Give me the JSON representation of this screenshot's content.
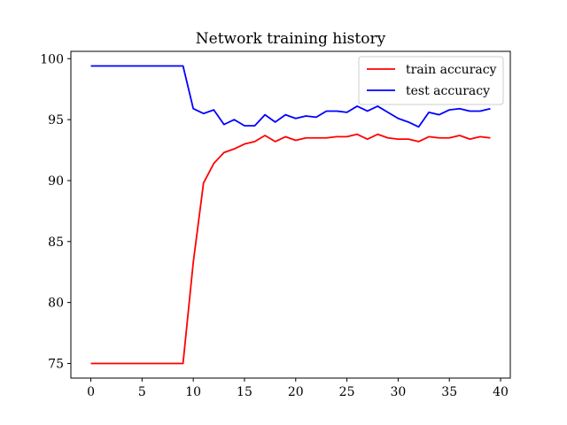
{
  "chart_data": {
    "type": "line",
    "title": "Network training history",
    "xlabel": "",
    "ylabel": "",
    "xlim": [
      -1.95,
      40.95
    ],
    "ylim": [
      73.8,
      100.6
    ],
    "x_ticks": [
      0,
      5,
      10,
      15,
      20,
      25,
      30,
      35,
      40
    ],
    "y_ticks": [
      75,
      80,
      85,
      90,
      95,
      100
    ],
    "grid": false,
    "legend_position": "top-right",
    "x": [
      0,
      1,
      2,
      3,
      4,
      5,
      6,
      7,
      8,
      9,
      10,
      11,
      12,
      13,
      14,
      15,
      16,
      17,
      18,
      19,
      20,
      21,
      22,
      23,
      24,
      25,
      26,
      27,
      28,
      29,
      30,
      31,
      32,
      33,
      34,
      35,
      36,
      37,
      38,
      39
    ],
    "series": [
      {
        "name": "train accuracy",
        "color": "#ff0000",
        "values": [
          75,
          75,
          75,
          75,
          75,
          75,
          75,
          75,
          75,
          75,
          83.3,
          89.8,
          91.4,
          92.3,
          92.6,
          93.0,
          93.2,
          93.7,
          93.2,
          93.6,
          93.3,
          93.5,
          93.5,
          93.5,
          93.6,
          93.6,
          93.8,
          93.4,
          93.8,
          93.5,
          93.4,
          93.4,
          93.2,
          93.6,
          93.5,
          93.5,
          93.7,
          93.4,
          93.6,
          93.5
        ]
      },
      {
        "name": "test accuracy",
        "color": "#0000ff",
        "values": [
          99.4,
          99.4,
          99.4,
          99.4,
          99.4,
          99.4,
          99.4,
          99.4,
          99.4,
          99.4,
          95.9,
          95.5,
          95.8,
          94.6,
          95.0,
          94.5,
          94.5,
          95.4,
          94.8,
          95.4,
          95.1,
          95.3,
          95.2,
          95.7,
          95.7,
          95.6,
          96.1,
          95.7,
          96.1,
          95.6,
          95.1,
          94.8,
          94.4,
          95.6,
          95.4,
          95.8,
          95.9,
          95.7,
          95.7,
          95.9
        ]
      }
    ]
  }
}
